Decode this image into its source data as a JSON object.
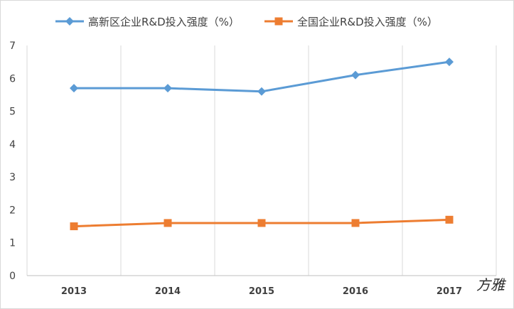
{
  "chart_data": {
    "type": "line",
    "categories": [
      "2013",
      "2014",
      "2015",
      "2016",
      "2017"
    ],
    "ylim": [
      0,
      7
    ],
    "yticks": [
      0,
      1,
      2,
      3,
      4,
      5,
      6,
      7
    ],
    "grid": "vertical",
    "legend_position": "top",
    "series": [
      {
        "name": "高新区企业R&D投入强度（%）",
        "values": [
          5.7,
          5.7,
          5.6,
          6.1,
          6.5
        ],
        "color": "#5b9bd5",
        "marker": "diamond"
      },
      {
        "name": "全国企业R&D投入强度（%）",
        "values": [
          1.5,
          1.6,
          1.6,
          1.6,
          1.7
        ],
        "color": "#ed7d31",
        "marker": "square"
      }
    ]
  },
  "watermark": "方雅"
}
